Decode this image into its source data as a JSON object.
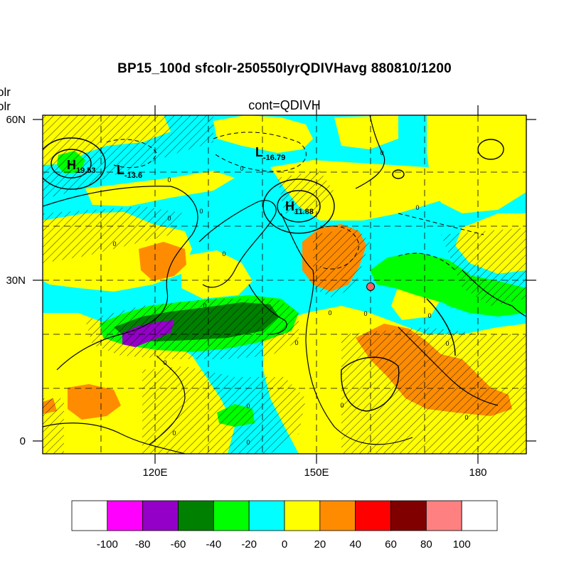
{
  "title": "BP15_100d sfcolr-250550lyrQDIVHavg  880810/1200",
  "subtitle": "cont=QDIVH",
  "left_cut_labels": [
    "olr",
    "olr"
  ],
  "axes": {
    "lat_ticks": [
      "60N",
      "30N",
      "0"
    ],
    "lon_ticks": [
      "120E",
      "150E",
      "180"
    ]
  },
  "pressure_labels": [
    {
      "kind": "H",
      "value": "19.53"
    },
    {
      "kind": "L",
      "value": "-13.6"
    },
    {
      "kind": "L",
      "value": "-16.79"
    },
    {
      "kind": "H",
      "value": "11.88"
    }
  ],
  "contour_zero_label": "0",
  "colorbar": {
    "labels": [
      "-100",
      "-80",
      "-60",
      "-40",
      "-20",
      "0",
      "20",
      "40",
      "60",
      "80",
      "100"
    ],
    "colors": [
      "#ffffff",
      "#ff00ff",
      "#9400c8",
      "#008000",
      "#00ff00",
      "#00ffff",
      "#ffff00",
      "#ff8c00",
      "#ff0000",
      "#800000",
      "#ff8080",
      "#ffffff"
    ]
  },
  "field_colors": {
    "ocean_base": "#00ffff",
    "positive_20_40": "#ffff00",
    "positive_40_60": "#ff8c00",
    "negative_40_60": "#00ff00",
    "negative_60_80": "#008000",
    "negative_80_100": "#9400c8",
    "marker": "#ff6060"
  }
}
